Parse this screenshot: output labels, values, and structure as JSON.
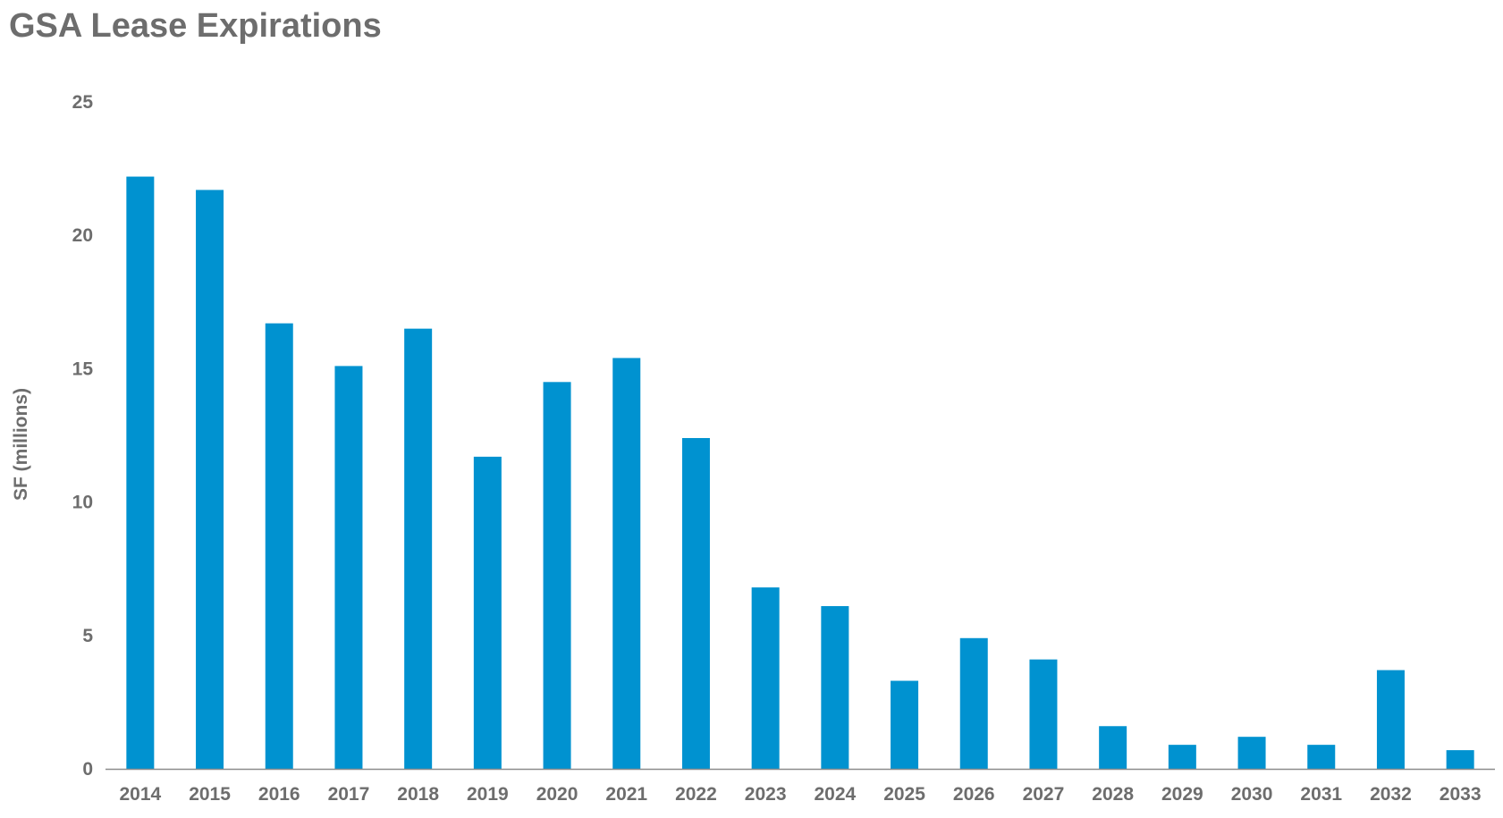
{
  "chart_data": {
    "type": "bar",
    "title": "GSA Lease Expirations",
    "xlabel": "",
    "ylabel": "SF (millions)",
    "ylim": [
      0,
      25
    ],
    "yticks": [
      0,
      5,
      10,
      15,
      20,
      25
    ],
    "grid": false,
    "legend": "none",
    "categories": [
      "2014",
      "2015",
      "2016",
      "2017",
      "2018",
      "2019",
      "2020",
      "2021",
      "2022",
      "2023",
      "2024",
      "2025",
      "2026",
      "2027",
      "2028",
      "2029",
      "2030",
      "2031",
      "2032",
      "2033"
    ],
    "series": [
      {
        "values": [
          22.2,
          21.7,
          16.7,
          15.1,
          16.5,
          11.7,
          14.5,
          15.4,
          12.4,
          6.8,
          6.1,
          3.3,
          4.9,
          4.1,
          1.6,
          0.9,
          1.2,
          0.9,
          3.7,
          0.7
        ]
      }
    ],
    "colors": {
      "bar": "#0092d0",
      "text": "#6d6d6d",
      "axis": "#8c8c8c"
    }
  }
}
